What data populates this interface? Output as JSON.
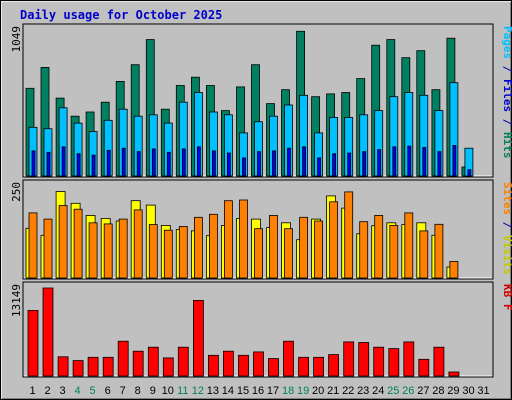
{
  "chart_data": {
    "type": "bar",
    "title": "Daily usage for October 2025",
    "days": [
      "1",
      "2",
      "3",
      "4",
      "5",
      "6",
      "7",
      "8",
      "9",
      "10",
      "11",
      "12",
      "13",
      "14",
      "15",
      "16",
      "17",
      "18",
      "19",
      "20",
      "21",
      "22",
      "23",
      "24",
      "25",
      "26",
      "27",
      "28",
      "29",
      "30",
      "31"
    ],
    "weekend_days": [
      "4",
      "5",
      "11",
      "12",
      "18",
      "19",
      "25",
      "26"
    ],
    "panels": [
      {
        "id": "hits-files-pages",
        "ymax_label": "1049",
        "ymax": 1049,
        "label_parts": [
          {
            "text": "Pages",
            "color": "#00c0ff"
          },
          {
            "text": " / ",
            "color": "#0000aa"
          },
          {
            "text": "Files",
            "color": "#0000cc"
          },
          {
            "text": " / ",
            "color": "#0000aa"
          },
          {
            "text": "Hits",
            "color": "#00805c"
          }
        ],
        "series": [
          {
            "name": "Hits",
            "color": "#008060",
            "values": [
              630,
              780,
              560,
              430,
              460,
              530,
              680,
              800,
              980,
              480,
              650,
              710,
              650,
              470,
              640,
              800,
              520,
              620,
              1040,
              570,
              590,
              600,
              700,
              940,
              980,
              850,
              900,
              620,
              990,
              65,
              0
            ]
          },
          {
            "name": "Files",
            "color": "#00c0ff",
            "values": [
              350,
              340,
              490,
              380,
              320,
              400,
              480,
              430,
              440,
              380,
              530,
              600,
              460,
              440,
              310,
              390,
              430,
              510,
              580,
              310,
              420,
              420,
              440,
              470,
              570,
              600,
              580,
              470,
              670,
              200,
              0
            ]
          },
          {
            "name": "Pages",
            "color": "#0000ff",
            "values": [
              180,
              170,
              210,
              160,
              150,
              185,
              200,
              175,
              195,
              170,
              195,
              210,
              180,
              165,
              130,
              175,
              180,
              200,
              210,
              130,
              160,
              165,
              175,
              190,
              210,
              215,
              205,
              175,
              220,
              45,
              0
            ]
          }
        ]
      },
      {
        "id": "visits-sites",
        "ymax_label": "250",
        "ymax": 250,
        "label_parts": [
          {
            "text": "Sites",
            "color": "#ff8000"
          },
          {
            "text": " / ",
            "color": "#0000aa"
          },
          {
            "text": "Visits",
            "color": "#c8c800"
          }
        ],
        "series": [
          {
            "name": "Visits",
            "color": "#ffff00",
            "values": [
              135,
              116,
              235,
              203,
              170,
              162,
              155,
              210,
              198,
              143,
              132,
              128,
              115,
              143,
              162,
              160,
              137,
              150,
              104,
              160,
              223,
              190,
              120,
              142,
              150,
              145,
              150,
              116,
              30,
              0,
              0
            ]
          },
          {
            "name": "Sites",
            "color": "#ff8000",
            "values": [
              177,
              160,
              197,
              187,
              150,
              147,
              160,
              185,
              145,
              130,
              140,
              165,
              173,
              210,
              212,
              134,
              170,
              134,
              165,
              155,
              207,
              234,
              153,
              170,
              143,
              177,
              128,
              146,
              45,
              0,
              0
            ]
          }
        ]
      },
      {
        "id": "kbytes",
        "ymax_label": "13149",
        "ymax": 13149,
        "label_parts": [
          {
            "text": "KB F",
            "color": "#cc0000"
          }
        ],
        "series": [
          {
            "name": "KB F",
            "color": "#ff0000",
            "values": [
              9800,
              13149,
              2870,
              2300,
              2800,
              2800,
              5200,
              3700,
              4300,
              2700,
              4300,
              11300,
              3100,
              3700,
              3100,
              3600,
              2600,
              5200,
              2800,
              2800,
              3200,
              5100,
              5000,
              4300,
              4100,
              5100,
              2500,
              4300,
              600,
              0,
              0
            ]
          }
        ]
      }
    ]
  }
}
